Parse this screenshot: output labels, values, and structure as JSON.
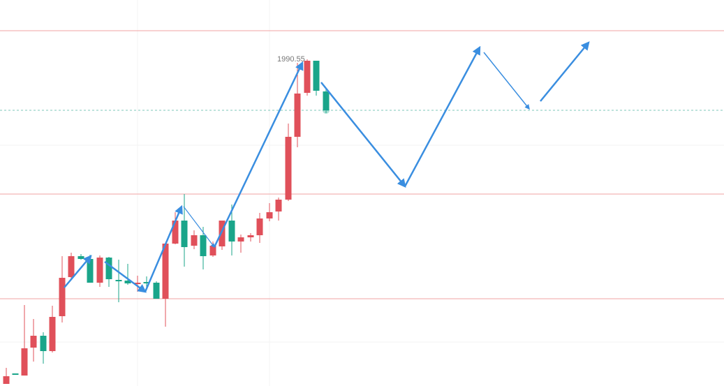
{
  "annotation": {
    "price_label": "1990.55"
  }
}
